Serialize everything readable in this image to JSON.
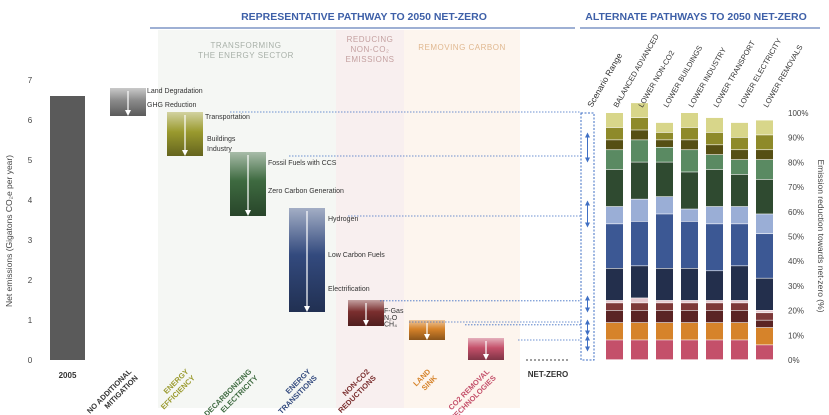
{
  "chart_data": {
    "type": "waterfall",
    "left_title": "REPRESENTATIVE PATHWAY TO 2050 NET-ZERO",
    "right_title": "ALTERNATE PATHWAYS TO 2050 NET-ZERO",
    "section_labels": {
      "energy": [
        "TRANSFORMING",
        "THE ENERGY SECTOR"
      ],
      "nonco2": [
        "REDUCING",
        "NON-CO₂",
        "EMISSIONS"
      ],
      "carbon": [
        "REMOVING CARBON"
      ]
    },
    "ylabel_left": "Net emissions (Gigatons CO₂e per year)",
    "ylabel_right": "Emission reduction towards net-zero (%)",
    "ylim_left": [
      0,
      7
    ],
    "yticks_left": [
      "0",
      "1",
      "2",
      "3",
      "4",
      "5",
      "6",
      "7"
    ],
    "ylim_right": [
      0,
      100
    ],
    "yticks_right": [
      "0%",
      "10%",
      "20%",
      "30%",
      "40%",
      "50%",
      "60%",
      "70%",
      "80%",
      "90%",
      "100%"
    ],
    "colors": {
      "base": "#5a5a5a",
      "no_mitigation": "#8a8a8a",
      "energy_efficiency": "#9a9a2e",
      "decarbonizing_electricity": "#3e6a40",
      "energy_transitions": "#334a7e",
      "non_co2": "#7a2e2e",
      "land_sink": "#d6832a",
      "co2_removal": "#c4506a",
      "title": "#3e60a8",
      "arrow": "#3f6fc4"
    },
    "bars": [
      {
        "label": "2005",
        "color_key": "base",
        "bottom": 0,
        "top": 6.6
      },
      {
        "label": "NO ADDITIONAL MITIGATION",
        "color_key": "no_mitigation",
        "bottom": 6.1,
        "top": 6.8,
        "step_bottom": 6.4
      },
      {
        "label": "ENERGY EFFICIENCY",
        "color_key": "energy_efficiency",
        "bottom": 5.1,
        "top": 6.2
      },
      {
        "label": "DECARBONIZING ELECTRICITY",
        "color_key": "decarbonizing_electricity",
        "bottom": 3.6,
        "top": 5.2
      },
      {
        "label": "ENERGY TRANSITIONS",
        "color_key": "energy_transitions",
        "bottom": 1.2,
        "top": 3.8
      },
      {
        "label": "NON-CO2 REDUCTIONS",
        "color_key": "non_co2",
        "bottom": 0.85,
        "top": 1.5
      },
      {
        "label": "LAND SINK",
        "color_key": "land_sink",
        "bottom": 0.5,
        "top": 1.0
      },
      {
        "label": "CO2 REMOVAL TECHNOLOGIES",
        "color_key": "co2_removal",
        "bottom": 0.0,
        "top": 0.55
      }
    ],
    "net_zero_label": "NET-ZERO",
    "segment_labels": [
      {
        "text": "Land Degradation",
        "y": 6.75
      },
      {
        "text": "GHG Reduction",
        "y": 6.4
      },
      {
        "text": "Transportation",
        "y": 6.1
      },
      {
        "text": "Buildings",
        "y": 5.55
      },
      {
        "text": "Industry",
        "y": 5.3
      },
      {
        "text": "Fossil Fuels with CCS",
        "y": 4.95
      },
      {
        "text": "Zero Carbon Generation",
        "y": 4.25
      },
      {
        "text": "Hydrogen",
        "y": 3.55
      },
      {
        "text": "Low Carbon Fuels",
        "y": 2.65
      },
      {
        "text": "Electrification",
        "y": 1.8
      },
      {
        "text": "F-Gas",
        "y": 1.25
      },
      {
        "text": "N₂O",
        "y": 1.08
      },
      {
        "text": "CH₄",
        "y": 0.91
      }
    ],
    "alternate_pathways": {
      "scenario_range_label": "Scenario Range",
      "categories": [
        "BALANCED ADVANCED",
        "LOWER NON-CO2",
        "LOWER BUILDINGS",
        "LOWER INDUSTRY",
        "LOWER TRANSPORT",
        "LOWER ELECTRICITY",
        "LOWER REMOVALS"
      ],
      "series": [
        {
          "name": "CO2 Removal Technologies",
          "color": "#c4506a",
          "values": [
            8,
            8,
            8,
            8,
            8,
            8,
            6
          ]
        },
        {
          "name": "Land Sink",
          "color": "#d6832a",
          "values": [
            7,
            7,
            7,
            7,
            7,
            7,
            7
          ]
        },
        {
          "name": "CH4",
          "color": "#5a2424",
          "values": [
            5,
            5,
            5,
            5,
            5,
            5,
            3
          ]
        },
        {
          "name": "N2O",
          "color": "#7d3838",
          "values": [
            3,
            3,
            3,
            3,
            3,
            3,
            3
          ]
        },
        {
          "name": "F-Gas",
          "color": "#e6c9cf",
          "values": [
            1,
            2,
            1,
            1,
            1,
            1,
            1
          ]
        },
        {
          "name": "Electrification",
          "color": "#232f4c",
          "values": [
            13,
            13,
            13,
            13,
            12,
            14,
            13
          ]
        },
        {
          "name": "Low Carbon Fuels",
          "color": "#3c5894",
          "values": [
            18,
            18,
            22,
            19,
            19,
            17,
            18
          ]
        },
        {
          "name": "Hydrogen",
          "color": "#9aaed6",
          "values": [
            7,
            9,
            7,
            5,
            7,
            7,
            8
          ]
        },
        {
          "name": "Zero Carbon Generation",
          "color": "#2f4a30",
          "values": [
            15,
            15,
            14,
            15,
            15,
            13,
            14
          ]
        },
        {
          "name": "Fossil Fuels with CCS",
          "color": "#5a8a62",
          "values": [
            8,
            9,
            6,
            9,
            6,
            6,
            8
          ]
        },
        {
          "name": "Industry",
          "color": "#564f14",
          "values": [
            4,
            4,
            3,
            4,
            4,
            4,
            4
          ]
        },
        {
          "name": "Buildings",
          "color": "#8e8a2a",
          "values": [
            5,
            5,
            3,
            5,
            5,
            5,
            6
          ]
        },
        {
          "name": "Transportation",
          "color": "#d8d68a",
          "values": [
            6,
            6,
            4,
            6,
            6,
            6,
            6
          ]
        }
      ]
    }
  }
}
